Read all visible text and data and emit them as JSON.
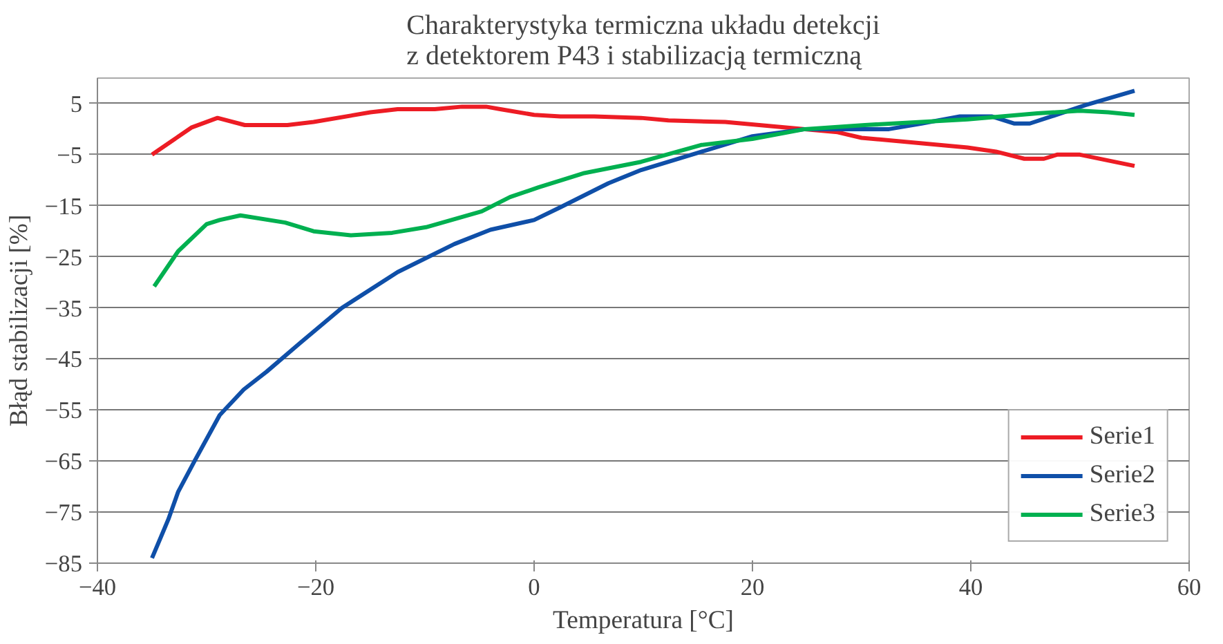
{
  "chart_data": {
    "type": "line",
    "title": "Charakterystyka termiczna układu detekcji\nz detektorem P43 i stabilizacją termiczną",
    "xlabel": "Temperatura [°C]",
    "ylabel": "Błąd stabilizacji [%]",
    "xlim": [
      -40,
      60
    ],
    "xticks": [
      -40,
      -20,
      0,
      20,
      40,
      60
    ],
    "ylim": [
      -85,
      10
    ],
    "yticks": [
      5,
      -5,
      -15,
      -25,
      -35,
      -45,
      -55,
      -65,
      -75,
      -85
    ],
    "grid": "y",
    "legend": "bottom right",
    "marker": "none",
    "line_style": "solid",
    "series": [
      {
        "name": "Serie1",
        "color": "#ed1c24",
        "x": [
          -35,
          -33.5,
          -31.4,
          -29,
          -26.5,
          -22.6,
          -20.2,
          -15,
          -12.5,
          -9.1,
          -6.6,
          -4.4,
          -3.1,
          0,
          2.4,
          5.5,
          9.8,
          12.3,
          17.5,
          24.8,
          27.8,
          30,
          39.7,
          42.3,
          44.9,
          46.7,
          47.9,
          50,
          55
        ],
        "values": [
          -5,
          -2.8,
          0.3,
          2.2,
          0.8,
          0.8,
          1.4,
          3.3,
          3.9,
          3.9,
          4.4,
          4.4,
          3.9,
          2.8,
          2.5,
          2.5,
          2.2,
          1.7,
          1.4,
          0,
          -0.6,
          -1.7,
          -3.6,
          -4.4,
          -5.8,
          -5.8,
          -5,
          -5,
          -7.2
        ]
      },
      {
        "name": "Serie2",
        "color": "#0f4fa8",
        "x": [
          -35,
          -33.5,
          -32.6,
          -31.1,
          -28.8,
          -26.6,
          -24.5,
          -21.5,
          -17.6,
          -12.5,
          -7.3,
          -4,
          0,
          2.4,
          6.8,
          9.8,
          14.9,
          20,
          24.8,
          32.5,
          35.5,
          39,
          41.9,
          44,
          45.4,
          47.4,
          50.5,
          55
        ],
        "values": [
          -84,
          -76.4,
          -71,
          -65,
          -56,
          -51,
          -47.5,
          -42,
          -35,
          -28,
          -22.5,
          -19.7,
          -17.8,
          -15.3,
          -10.6,
          -8,
          -4.7,
          -1.4,
          0,
          0,
          1.1,
          2.5,
          2.5,
          1.1,
          1.1,
          2.5,
          4.7,
          7.5
        ]
      },
      {
        "name": "Serie3",
        "color": "#00b050",
        "x": [
          -34.8,
          -32.6,
          -30,
          -28.8,
          -26.9,
          -22.8,
          -20.2,
          -16.8,
          -13,
          -9.9,
          -4.8,
          -2.2,
          0.4,
          4.6,
          9.8,
          15.3,
          20,
          24.8,
          30.3,
          39.7,
          46.1,
          50,
          52.6,
          55
        ],
        "values": [
          -30.8,
          -23.9,
          -18.6,
          -17.8,
          -16.9,
          -18.3,
          -20,
          -20.8,
          -20.3,
          -19.2,
          -16.1,
          -13.3,
          -11.4,
          -8.6,
          -6.4,
          -3.1,
          -1.9,
          0,
          0.8,
          1.9,
          3.1,
          3.6,
          3.3,
          2.8
        ]
      }
    ]
  }
}
